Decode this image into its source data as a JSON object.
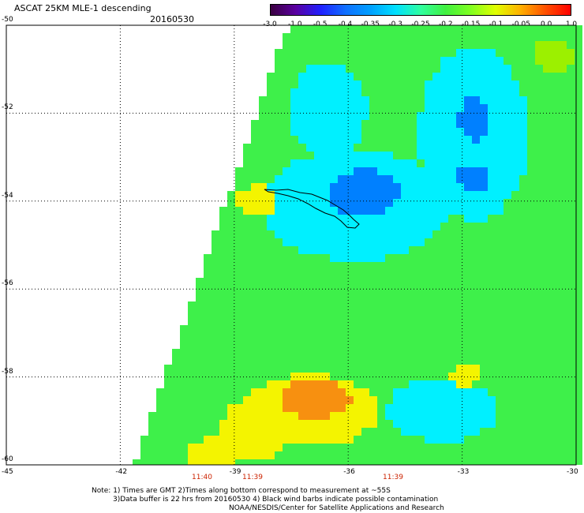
{
  "header": {
    "title": "ASCAT 25KM MLE-1 descending",
    "date": "20160530"
  },
  "colorbar": {
    "labels": [
      "-3.0",
      "-1.0",
      "-0.5",
      "-0.4",
      "-0.35",
      "-0.3",
      "-0.25",
      "-0.2",
      "-0.15",
      "-0.1",
      "-0.05",
      "0.0",
      "1.0"
    ],
    "colors": [
      "#3a0040",
      "#5a00a0",
      "#2020ff",
      "#1070ff",
      "#00a0ff",
      "#00e0ff",
      "#30ffa0",
      "#40f040",
      "#80ff20",
      "#e0ff00",
      "#ffb000",
      "#ff5000",
      "#ff0000"
    ]
  },
  "map": {
    "lat_ticks": [
      "-50",
      "-52",
      "-54",
      "-56",
      "-58",
      "-60"
    ],
    "lon_ticks": [
      "-45",
      "-42",
      "-39",
      "-36",
      "-33",
      "-30"
    ],
    "times": [
      "11:40",
      "11:39",
      "11:39"
    ],
    "grid": true,
    "palette": {
      "green": "#3ef04a",
      "cyan": "#00f0ff",
      "blue": "#0080ff",
      "yellow": "#f4f400",
      "orange": "#f79010",
      "lime": "#9cf000"
    }
  },
  "notes": {
    "line1": "Note: 1) Times are GMT 2)Times along bottom correspond to measurement at ~55S",
    "line2": "3)Data buffer is 22 hrs from 20160530 4) Black wind barbs indicate possible contamination",
    "line3": "NOAA/NESDIS/Center for Satellite Applications and Research"
  }
}
